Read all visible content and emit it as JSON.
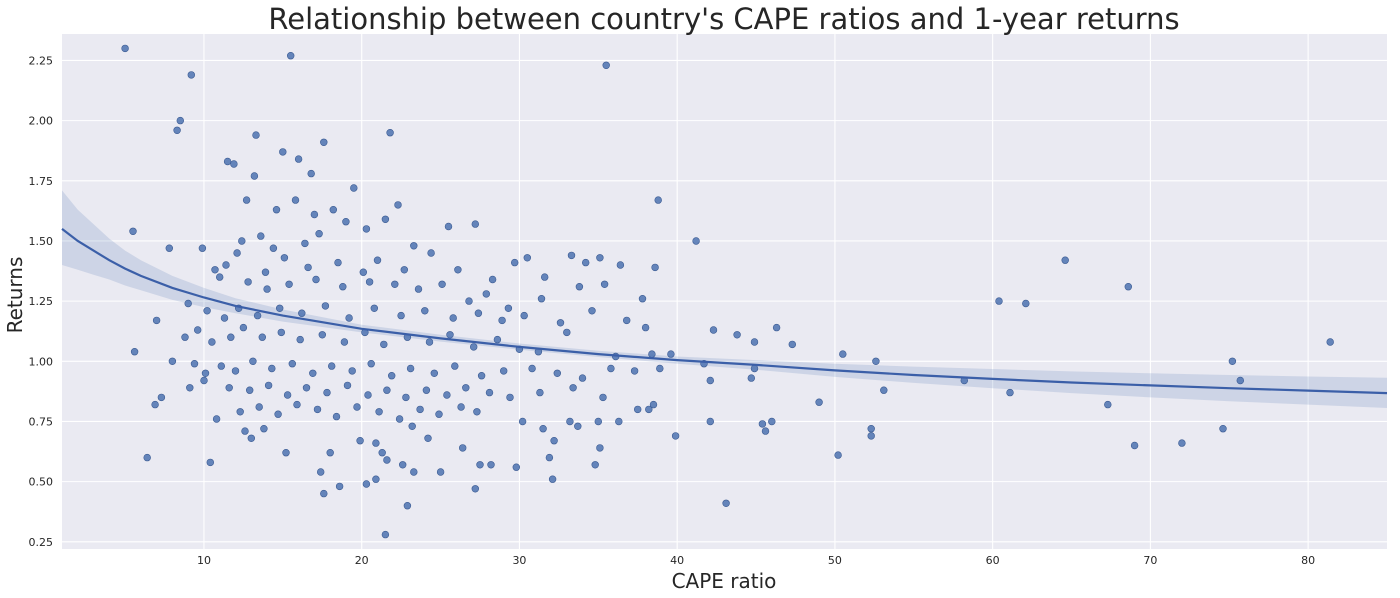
{
  "chart_data": {
    "type": "scatter",
    "title": "Relationship between country's CAPE ratios and 1-year returns",
    "xlabel": "CAPE ratio",
    "ylabel": "Returns",
    "xlim": [
      1,
      85
    ],
    "ylim": [
      0.22,
      2.36
    ],
    "x_ticks": [
      10,
      20,
      30,
      40,
      50,
      60,
      70,
      80
    ],
    "y_ticks": [
      0.25,
      0.5,
      0.75,
      1.0,
      1.25,
      1.5,
      1.75,
      2.0,
      2.25
    ],
    "x_tick_labels": [
      "10",
      "20",
      "30",
      "40",
      "50",
      "60",
      "70",
      "80"
    ],
    "y_tick_labels": [
      "0.25",
      "0.50",
      "0.75",
      "1.00",
      "1.25",
      "1.50",
      "1.75",
      "2.00",
      "2.25"
    ],
    "grid": true,
    "background_color": "#eaeaf2",
    "point_color": "#4c72b0",
    "line_color": "#3b5fa8",
    "band_color": "#4c72b0",
    "regression": {
      "x": [
        1,
        2,
        3,
        4,
        5,
        6,
        8,
        10,
        12,
        15,
        20,
        25,
        30,
        35,
        40,
        45,
        50,
        55,
        60,
        65,
        70,
        75,
        80,
        85
      ],
      "y": [
        1.55,
        1.5,
        1.46,
        1.42,
        1.385,
        1.355,
        1.305,
        1.265,
        1.23,
        1.19,
        1.135,
        1.095,
        1.06,
        1.03,
        1.005,
        0.985,
        0.962,
        0.943,
        0.927,
        0.912,
        0.9,
        0.888,
        0.878,
        0.868
      ],
      "lower": [
        1.4,
        1.38,
        1.36,
        1.34,
        1.315,
        1.295,
        1.255,
        1.225,
        1.2,
        1.165,
        1.12,
        1.082,
        1.048,
        1.018,
        0.99,
        0.965,
        0.935,
        0.91,
        0.888,
        0.868,
        0.85,
        0.834,
        0.82,
        0.806
      ],
      "upper": [
        1.71,
        1.63,
        1.57,
        1.51,
        1.46,
        1.42,
        1.355,
        1.305,
        1.262,
        1.215,
        1.152,
        1.11,
        1.074,
        1.044,
        1.02,
        1.005,
        0.99,
        0.978,
        0.968,
        0.958,
        0.95,
        0.943,
        0.937,
        0.932
      ]
    },
    "points": [
      [
        5.0,
        2.3
      ],
      [
        9.2,
        2.19
      ],
      [
        8.5,
        2.0
      ],
      [
        8.3,
        1.96
      ],
      [
        15.5,
        2.27
      ],
      [
        35.5,
        2.23
      ],
      [
        21.8,
        1.95
      ],
      [
        13.3,
        1.94
      ],
      [
        17.6,
        1.91
      ],
      [
        15.0,
        1.87
      ],
      [
        16.0,
        1.84
      ],
      [
        11.5,
        1.83
      ],
      [
        11.9,
        1.82
      ],
      [
        13.2,
        1.77
      ],
      [
        16.8,
        1.78
      ],
      [
        19.5,
        1.72
      ],
      [
        38.8,
        1.67
      ],
      [
        14.6,
        1.63
      ],
      [
        15.8,
        1.67
      ],
      [
        12.7,
        1.67
      ],
      [
        22.3,
        1.65
      ],
      [
        17.0,
        1.61
      ],
      [
        18.2,
        1.63
      ],
      [
        5.5,
        1.54
      ],
      [
        7.8,
        1.47
      ],
      [
        9.9,
        1.47
      ],
      [
        12.4,
        1.5
      ],
      [
        13.6,
        1.52
      ],
      [
        14.4,
        1.47
      ],
      [
        16.4,
        1.49
      ],
      [
        17.3,
        1.53
      ],
      [
        19.0,
        1.58
      ],
      [
        20.3,
        1.55
      ],
      [
        21.5,
        1.59
      ],
      [
        23.3,
        1.48
      ],
      [
        25.5,
        1.56
      ],
      [
        27.2,
        1.57
      ],
      [
        41.2,
        1.5
      ],
      [
        35.1,
        1.43
      ],
      [
        34.2,
        1.41
      ],
      [
        36.4,
        1.4
      ],
      [
        38.6,
        1.39
      ],
      [
        30.5,
        1.43
      ],
      [
        31.6,
        1.35
      ],
      [
        33.3,
        1.44
      ],
      [
        64.6,
        1.42
      ],
      [
        68.6,
        1.31
      ],
      [
        60.4,
        1.25
      ],
      [
        62.1,
        1.24
      ],
      [
        10.7,
        1.38
      ],
      [
        11.4,
        1.4
      ],
      [
        12.1,
        1.45
      ],
      [
        13.9,
        1.37
      ],
      [
        15.1,
        1.43
      ],
      [
        16.6,
        1.39
      ],
      [
        18.5,
        1.41
      ],
      [
        20.1,
        1.37
      ],
      [
        21.0,
        1.42
      ],
      [
        22.7,
        1.38
      ],
      [
        24.4,
        1.45
      ],
      [
        26.1,
        1.38
      ],
      [
        28.3,
        1.34
      ],
      [
        29.7,
        1.41
      ],
      [
        11.0,
        1.35
      ],
      [
        12.8,
        1.33
      ],
      [
        14.0,
        1.3
      ],
      [
        15.4,
        1.32
      ],
      [
        17.1,
        1.34
      ],
      [
        18.8,
        1.31
      ],
      [
        20.5,
        1.33
      ],
      [
        22.1,
        1.32
      ],
      [
        23.6,
        1.3
      ],
      [
        25.1,
        1.32
      ],
      [
        26.8,
        1.25
      ],
      [
        27.9,
        1.28
      ],
      [
        29.3,
        1.22
      ],
      [
        31.4,
        1.26
      ],
      [
        33.8,
        1.31
      ],
      [
        35.4,
        1.32
      ],
      [
        37.8,
        1.26
      ],
      [
        9.0,
        1.24
      ],
      [
        10.2,
        1.21
      ],
      [
        11.3,
        1.18
      ],
      [
        12.2,
        1.22
      ],
      [
        13.4,
        1.19
      ],
      [
        14.8,
        1.22
      ],
      [
        16.2,
        1.2
      ],
      [
        17.7,
        1.23
      ],
      [
        19.2,
        1.18
      ],
      [
        20.8,
        1.22
      ],
      [
        22.5,
        1.19
      ],
      [
        24.0,
        1.21
      ],
      [
        25.8,
        1.18
      ],
      [
        27.4,
        1.2
      ],
      [
        28.9,
        1.17
      ],
      [
        30.3,
        1.19
      ],
      [
        32.6,
        1.16
      ],
      [
        34.6,
        1.21
      ],
      [
        36.8,
        1.17
      ],
      [
        38.0,
        1.14
      ],
      [
        42.3,
        1.13
      ],
      [
        43.8,
        1.11
      ],
      [
        44.9,
        1.08
      ],
      [
        46.3,
        1.14
      ],
      [
        47.3,
        1.07
      ],
      [
        8.8,
        1.1
      ],
      [
        9.6,
        1.13
      ],
      [
        10.5,
        1.08
      ],
      [
        11.7,
        1.1
      ],
      [
        12.5,
        1.14
      ],
      [
        13.7,
        1.1
      ],
      [
        14.9,
        1.12
      ],
      [
        16.1,
        1.09
      ],
      [
        17.5,
        1.11
      ],
      [
        18.9,
        1.08
      ],
      [
        20.2,
        1.12
      ],
      [
        21.4,
        1.07
      ],
      [
        22.9,
        1.1
      ],
      [
        24.3,
        1.08
      ],
      [
        25.6,
        1.11
      ],
      [
        27.1,
        1.06
      ],
      [
        28.6,
        1.09
      ],
      [
        30.0,
        1.05
      ],
      [
        31.2,
        1.04
      ],
      [
        33.0,
        1.12
      ],
      [
        36.1,
        1.02
      ],
      [
        38.4,
        1.03
      ],
      [
        39.6,
        1.03
      ],
      [
        50.5,
        1.03
      ],
      [
        52.6,
        1.0
      ],
      [
        75.2,
        1.0
      ],
      [
        81.4,
        1.08
      ],
      [
        5.6,
        1.04
      ],
      [
        7.0,
        1.17
      ],
      [
        6.9,
        0.82
      ],
      [
        7.3,
        0.85
      ],
      [
        6.4,
        0.6
      ],
      [
        8.0,
        1.0
      ],
      [
        9.4,
        0.99
      ],
      [
        10.1,
        0.95
      ],
      [
        11.1,
        0.98
      ],
      [
        12.0,
        0.96
      ],
      [
        13.1,
        1.0
      ],
      [
        14.3,
        0.97
      ],
      [
        15.6,
        0.99
      ],
      [
        16.9,
        0.95
      ],
      [
        18.1,
        0.98
      ],
      [
        19.4,
        0.96
      ],
      [
        20.6,
        0.99
      ],
      [
        21.9,
        0.94
      ],
      [
        23.1,
        0.97
      ],
      [
        24.6,
        0.95
      ],
      [
        25.9,
        0.98
      ],
      [
        27.6,
        0.94
      ],
      [
        29.0,
        0.96
      ],
      [
        30.8,
        0.97
      ],
      [
        32.4,
        0.95
      ],
      [
        34.0,
        0.93
      ],
      [
        35.8,
        0.97
      ],
      [
        37.3,
        0.96
      ],
      [
        38.9,
        0.97
      ],
      [
        41.7,
        0.99
      ],
      [
        42.1,
        0.92
      ],
      [
        44.7,
        0.93
      ],
      [
        44.9,
        0.97
      ],
      [
        53.1,
        0.88
      ],
      [
        58.2,
        0.92
      ],
      [
        61.1,
        0.87
      ],
      [
        75.7,
        0.92
      ],
      [
        9.1,
        0.89
      ],
      [
        10.0,
        0.92
      ],
      [
        11.6,
        0.89
      ],
      [
        12.9,
        0.88
      ],
      [
        14.1,
        0.9
      ],
      [
        15.3,
        0.86
      ],
      [
        16.5,
        0.89
      ],
      [
        17.8,
        0.87
      ],
      [
        19.1,
        0.9
      ],
      [
        20.4,
        0.86
      ],
      [
        21.6,
        0.88
      ],
      [
        22.8,
        0.85
      ],
      [
        24.1,
        0.88
      ],
      [
        25.4,
        0.86
      ],
      [
        26.6,
        0.89
      ],
      [
        28.1,
        0.87
      ],
      [
        29.4,
        0.85
      ],
      [
        31.3,
        0.87
      ],
      [
        33.4,
        0.89
      ],
      [
        35.3,
        0.85
      ],
      [
        49.0,
        0.83
      ],
      [
        67.3,
        0.82
      ],
      [
        10.8,
        0.76
      ],
      [
        12.3,
        0.79
      ],
      [
        13.5,
        0.81
      ],
      [
        14.7,
        0.78
      ],
      [
        15.9,
        0.82
      ],
      [
        17.2,
        0.8
      ],
      [
        18.4,
        0.77
      ],
      [
        19.7,
        0.81
      ],
      [
        21.1,
        0.79
      ],
      [
        22.4,
        0.76
      ],
      [
        23.7,
        0.8
      ],
      [
        24.9,
        0.78
      ],
      [
        26.3,
        0.81
      ],
      [
        27.3,
        0.79
      ],
      [
        30.2,
        0.75
      ],
      [
        31.5,
        0.72
      ],
      [
        33.2,
        0.75
      ],
      [
        33.7,
        0.73
      ],
      [
        35.0,
        0.75
      ],
      [
        36.3,
        0.75
      ],
      [
        37.5,
        0.8
      ],
      [
        38.2,
        0.8
      ],
      [
        38.5,
        0.82
      ],
      [
        42.1,
        0.75
      ],
      [
        45.4,
        0.74
      ],
      [
        45.6,
        0.71
      ],
      [
        46.0,
        0.75
      ],
      [
        52.3,
        0.72
      ],
      [
        52.3,
        0.69
      ],
      [
        69.0,
        0.65
      ],
      [
        72.0,
        0.66
      ],
      [
        74.6,
        0.72
      ],
      [
        12.6,
        0.71
      ],
      [
        13.0,
        0.68
      ],
      [
        13.8,
        0.72
      ],
      [
        15.2,
        0.62
      ],
      [
        17.4,
        0.54
      ],
      [
        18.0,
        0.62
      ],
      [
        18.6,
        0.48
      ],
      [
        19.9,
        0.67
      ],
      [
        20.9,
        0.66
      ],
      [
        21.3,
        0.62
      ],
      [
        22.6,
        0.57
      ],
      [
        23.2,
        0.73
      ],
      [
        24.2,
        0.68
      ],
      [
        25.0,
        0.54
      ],
      [
        26.4,
        0.64
      ],
      [
        27.5,
        0.57
      ],
      [
        28.2,
        0.57
      ],
      [
        29.8,
        0.56
      ],
      [
        31.9,
        0.6
      ],
      [
        32.2,
        0.67
      ],
      [
        34.8,
        0.57
      ],
      [
        35.1,
        0.64
      ],
      [
        39.9,
        0.69
      ],
      [
        10.4,
        0.58
      ],
      [
        17.6,
        0.45
      ],
      [
        20.3,
        0.49
      ],
      [
        21.6,
        0.59
      ],
      [
        22.9,
        0.4
      ],
      [
        32.1,
        0.51
      ],
      [
        43.1,
        0.41
      ],
      [
        50.2,
        0.61
      ],
      [
        21.5,
        0.28
      ],
      [
        27.2,
        0.47
      ],
      [
        23.3,
        0.54
      ],
      [
        20.9,
        0.51
      ]
    ]
  }
}
